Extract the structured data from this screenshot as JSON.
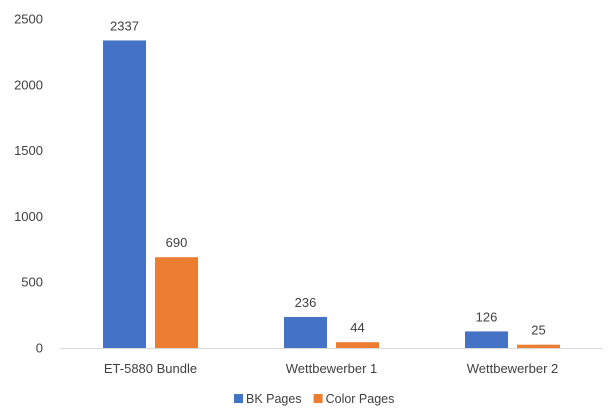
{
  "chart_data": {
    "type": "bar",
    "title": "",
    "xlabel": "",
    "ylabel": "",
    "categories": [
      "ET-5880 Bundle",
      "Wettbewerber 1",
      "Wettbewerber 2"
    ],
    "series": [
      {
        "name": "BK Pages",
        "values": [
          2337,
          236,
          126
        ],
        "color": "#4472C4"
      },
      {
        "name": "Color Pages",
        "values": [
          690,
          44,
          25
        ],
        "color": "#ED7D31"
      }
    ],
    "ylim": [
      0,
      2500
    ],
    "yticks": [
      0,
      500,
      1000,
      1500,
      2000,
      2500
    ],
    "data_labels": true,
    "grid": false,
    "legend": "bottom-center"
  }
}
